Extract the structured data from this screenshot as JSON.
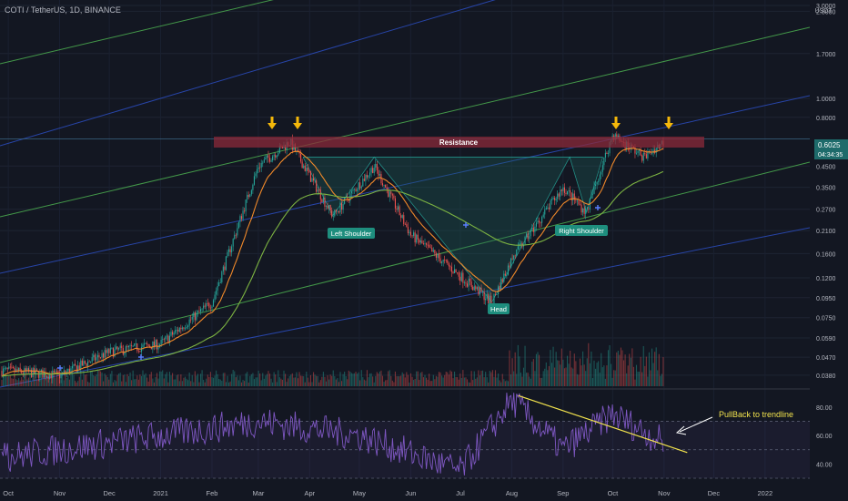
{
  "symbol_title": "COTI / TetherUS, 1D, BINANCE",
  "currency_label": "USDT",
  "price_axis": {
    "scale": "log",
    "range": [
      0.033,
      3.2
    ],
    "ticks": [
      "3.0000",
      "2.8000",
      "1.7000",
      "1.0000",
      "0.8000",
      "0.4500",
      "0.3500",
      "0.2700",
      "0.2100",
      "0.1600",
      "0.1200",
      "0.0950",
      "0.0750",
      "0.0590",
      "0.0470",
      "0.0380"
    ],
    "last_price": "0.6025",
    "countdown": "04:34:35"
  },
  "rsi_axis": {
    "range": [
      30,
      92
    ],
    "ticks": [
      "80.00",
      "60.00",
      "40.00"
    ],
    "bands": [
      70,
      50,
      30
    ]
  },
  "time_axis": {
    "labels": [
      "Oct",
      "Nov",
      "Dec",
      "2021",
      "Feb",
      "Mar",
      "Apr",
      "May",
      "Jun",
      "Jul",
      "Aug",
      "Sep",
      "Oct",
      "Nov",
      "Dec",
      "2022"
    ]
  },
  "annotations": {
    "resistance": "Resistance",
    "left_shoulder": "Left Shoulder",
    "head": "Head",
    "right_shoulder": "Right Shoulder",
    "pullback": "PullBack to trendline"
  },
  "colors": {
    "background": "#131722",
    "up_candle": "#26a69a",
    "down_candle": "#ef5350",
    "ema": "#f0892a",
    "ma200": "#7cb342",
    "channel_blue": "#2b4dbf",
    "channel_green": "#4caf50",
    "resistance_zone": "#8b2a3a",
    "pattern_label": "#1e8e7e",
    "arrow": "#f5b80a",
    "rsi_line": "#7e57c2",
    "trendline": "#f2e34d"
  },
  "chart_data": {
    "type": "candlestick",
    "interval": "1D",
    "pair": "COTI / TetherUS",
    "exchange": "BINANCE",
    "price_key_points": [
      {
        "time": "2020-10",
        "price": 0.04
      },
      {
        "time": "2020-11",
        "price": 0.038
      },
      {
        "time": "2020-12",
        "price": 0.05
      },
      {
        "time": "2021-01",
        "price": 0.055
      },
      {
        "time": "2021-02",
        "price": 0.09
      },
      {
        "time": "2021-03",
        "price": 0.45
      },
      {
        "time": "2021-03-20",
        "price": 0.6
      },
      {
        "time": "2021-04-15",
        "price": 0.25
      },
      {
        "time": "2021-05-10",
        "price": 0.45
      },
      {
        "time": "2021-06",
        "price": 0.2
      },
      {
        "time": "2021-07-20",
        "price": 0.09
      },
      {
        "time": "2021-08",
        "price": 0.15
      },
      {
        "time": "2021-09",
        "price": 0.35
      },
      {
        "time": "2021-09-15",
        "price": 0.26
      },
      {
        "time": "2021-10-01",
        "price": 0.65
      },
      {
        "time": "2021-10-20",
        "price": 0.5
      },
      {
        "time": "2021-11-01",
        "price": 0.6025
      }
    ],
    "resistance_level": 0.62,
    "neckline": 0.5,
    "rsi_key_points": [
      {
        "time": "2020-10",
        "value": 45
      },
      {
        "time": "2021-02",
        "value": 65
      },
      {
        "time": "2021-03",
        "value": 70
      },
      {
        "time": "2021-05",
        "value": 60
      },
      {
        "time": "2021-07",
        "value": 35
      },
      {
        "time": "2021-08",
        "value": 85
      },
      {
        "time": "2021-09",
        "value": 50
      },
      {
        "time": "2021-10",
        "value": 75
      },
      {
        "time": "2021-11-01",
        "value": 55
      }
    ],
    "rsi_trendline": {
      "from": {
        "time": "2021-08-05",
        "value": 88
      },
      "to": {
        "time": "2021-11-15",
        "value": 48
      }
    }
  }
}
